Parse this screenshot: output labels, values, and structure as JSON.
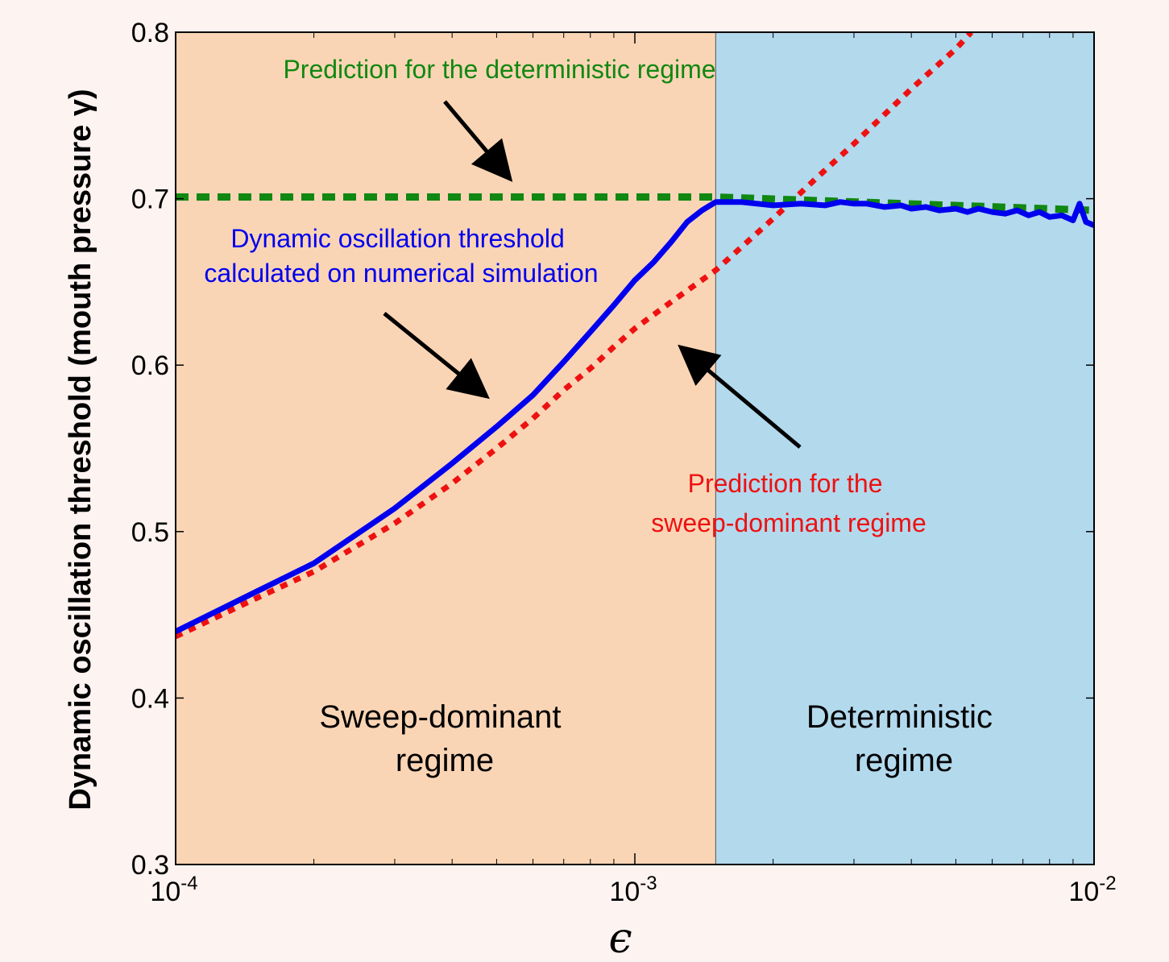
{
  "chart_data": {
    "type": "line",
    "ylabel": "Dynamic oscillation threshold (mouth pressure γ)",
    "xlabel": "ϵ",
    "x_scale": "log",
    "xlim": [
      0.0001,
      0.01
    ],
    "ylim": [
      0.3,
      0.8
    ],
    "xticks": [
      {
        "value": 0.0001,
        "base": "10",
        "exp": "-4"
      },
      {
        "value": 0.001,
        "base": "10",
        "exp": "-3"
      },
      {
        "value": 0.01,
        "base": "10",
        "exp": "-2"
      }
    ],
    "yticks": [
      {
        "value": 0.3,
        "label": "0.3"
      },
      {
        "value": 0.4,
        "label": "0.4"
      },
      {
        "value": 0.5,
        "label": "0.5"
      },
      {
        "value": 0.6,
        "label": "0.6"
      },
      {
        "value": 0.7,
        "label": "0.7"
      },
      {
        "value": 0.8,
        "label": "0.8"
      }
    ],
    "grid": false,
    "regions": [
      {
        "label_lines": [
          "Sweep-dominant",
          "regime"
        ],
        "x_from": 0.0001,
        "x_to": 0.0015,
        "color": "#fad5b5"
      },
      {
        "label_lines": [
          "Deterministic",
          "regime"
        ],
        "x_from": 0.0015,
        "x_to": 0.01,
        "color": "#b3d9ed"
      }
    ],
    "series": [
      {
        "color": "#0000ee",
        "style": "solid",
        "x": [
          0.0001,
          0.00015,
          0.0002,
          0.0003,
          0.0004,
          0.0005,
          0.0006,
          0.0007,
          0.0008,
          0.0009,
          0.001,
          0.0011,
          0.0012,
          0.0013,
          0.0014,
          0.0015,
          0.0017,
          0.002,
          0.0023,
          0.0026,
          0.0028,
          0.003,
          0.0032,
          0.0035,
          0.0038,
          0.004,
          0.0043,
          0.0046,
          0.005,
          0.0053,
          0.0056,
          0.006,
          0.0064,
          0.0068,
          0.0072,
          0.0076,
          0.008,
          0.0085,
          0.009,
          0.0093,
          0.0096,
          0.01
        ],
        "y": [
          0.44,
          0.464,
          0.481,
          0.514,
          0.541,
          0.563,
          0.582,
          0.602,
          0.62,
          0.636,
          0.651,
          0.662,
          0.674,
          0.686,
          0.693,
          0.698,
          0.698,
          0.696,
          0.697,
          0.696,
          0.698,
          0.697,
          0.697,
          0.695,
          0.696,
          0.694,
          0.695,
          0.693,
          0.694,
          0.692,
          0.694,
          0.692,
          0.691,
          0.693,
          0.69,
          0.692,
          0.689,
          0.69,
          0.687,
          0.697,
          0.686,
          0.684
        ]
      },
      {
        "color": "#ee1111",
        "style": "dotted",
        "x": [
          0.0001,
          0.00015,
          0.0002,
          0.0003,
          0.0004,
          0.0005,
          0.0006,
          0.0007,
          0.0008,
          0.0009,
          0.001,
          0.0012,
          0.0015,
          0.002,
          0.0025,
          0.003,
          0.004,
          0.005,
          0.0054
        ],
        "y": [
          0.437,
          0.46,
          0.476,
          0.505,
          0.529,
          0.55,
          0.568,
          0.585,
          0.598,
          0.611,
          0.622,
          0.638,
          0.657,
          0.688,
          0.713,
          0.733,
          0.766,
          0.79,
          0.8
        ]
      },
      {
        "color": "#118811",
        "style": "dashed",
        "x": [
          0.0001,
          0.0015,
          0.01
        ],
        "y": [
          0.701,
          0.701,
          0.693
        ]
      }
    ],
    "annotations": [
      {
        "lines": [
          "Prediction for the deterministic regime"
        ],
        "color": "#118811"
      },
      {
        "lines": [
          "Dynamic oscillation threshold",
          "calculated on numerical simulation"
        ],
        "color": "#0000ee"
      },
      {
        "lines": [
          "Prediction for the",
          "sweep-dominant regime"
        ],
        "color": "#ee1111"
      }
    ]
  }
}
